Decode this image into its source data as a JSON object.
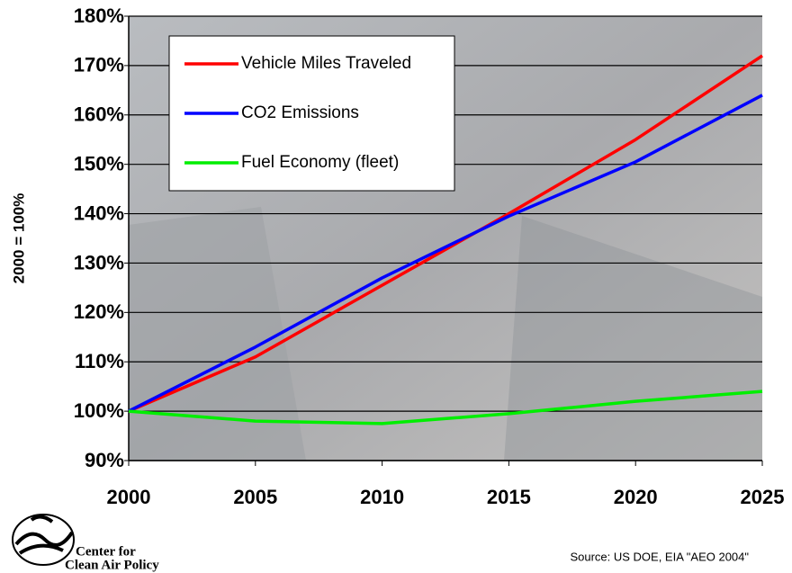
{
  "chart_data": {
    "type": "line",
    "y_label": "2000 = 100%",
    "x": [
      2000,
      2005,
      2010,
      2015,
      2020,
      2025
    ],
    "xlim": [
      2000,
      2025
    ],
    "xticks": [
      2000,
      2005,
      2010,
      2015,
      2020,
      2025
    ],
    "ylim": [
      90,
      180
    ],
    "yticks": [
      {
        "value": 90,
        "label": "90%"
      },
      {
        "value": 100,
        "label": "100%"
      },
      {
        "value": 110,
        "label": "110%"
      },
      {
        "value": 120,
        "label": "120%"
      },
      {
        "value": 130,
        "label": "130%"
      },
      {
        "value": 140,
        "label": "140%"
      },
      {
        "value": 150,
        "label": "150%"
      },
      {
        "value": 160,
        "label": "160%"
      },
      {
        "value": 170,
        "label": "170%"
      },
      {
        "value": 180,
        "label": "180%"
      }
    ],
    "grid": true,
    "legend": "upper left",
    "series": [
      {
        "name": "Vehicle Miles Traveled",
        "color": "#ff0000",
        "values": [
          100,
          111,
          125.5,
          140,
          155,
          172
        ]
      },
      {
        "name": "CO2 Emissions",
        "color": "#0000ff",
        "values": [
          100,
          113,
          127,
          139.5,
          150.5,
          164
        ]
      },
      {
        "name": "Fuel Economy (fleet)",
        "color": "#00ee00",
        "values": [
          100,
          98,
          97.5,
          99.5,
          102,
          104
        ]
      }
    ]
  },
  "footer": {
    "logo_text": [
      "Center for",
      "Clean Air Policy"
    ],
    "source": "Source:  US DOE, EIA \"AEO 2004\""
  }
}
